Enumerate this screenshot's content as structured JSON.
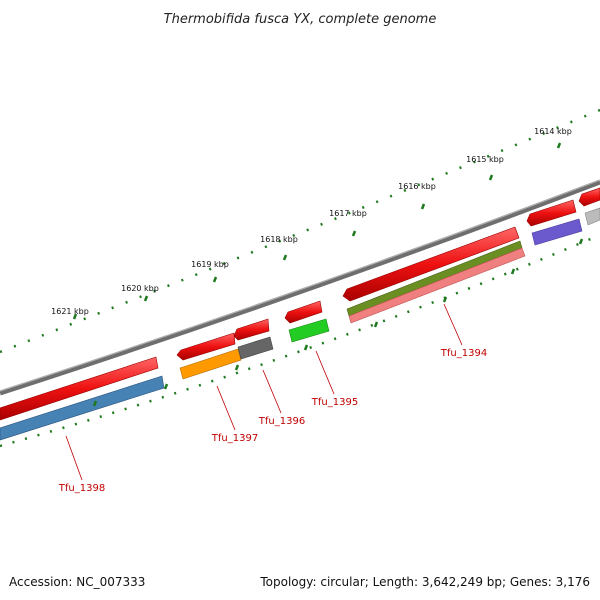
{
  "title": "Thermobifida fusca YX, complete genome",
  "footer": {
    "accession": "Accession: NC_007333",
    "topology": "Topology: circular; Length: 3,642,249 bp; Genes: 3,176"
  },
  "colors": {
    "backbone": "#7a7a7a",
    "ticks": "#1f7a1f",
    "cds_forward": "#ee1111",
    "label": "#c00000"
  },
  "scale_labels": [
    "1614 kbp",
    "1615 kbp",
    "1616 kbp",
    "1617 kbp",
    "1618 kbp",
    "1619 kbp",
    "1620 kbp",
    "1621 kbp"
  ],
  "gene_labels": [
    "Tfu_1394",
    "Tfu_1395",
    "Tfu_1396",
    "Tfu_1397",
    "Tfu_1398"
  ],
  "feature_colors": {
    "Tfu_1394": [
      "#6b8e23",
      "#f08080"
    ],
    "Tfu_1395": "#22cc22",
    "Tfu_1396": "#666666",
    "Tfu_1397": "#ff9900",
    "Tfu_1398": "#4682b4",
    "upstream_1": "#6a5acd",
    "upstream_2": "#bbbbbb"
  }
}
